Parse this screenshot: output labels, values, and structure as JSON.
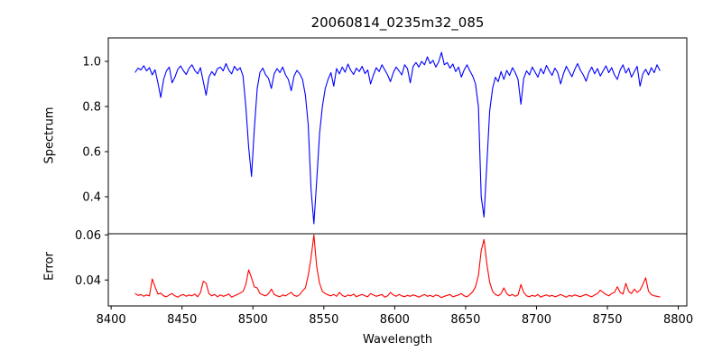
{
  "figure": {
    "title": "20060814_0235m32_085",
    "xlabel": "Wavelength",
    "ylabel_top": "Spectrum",
    "ylabel_bottom": "Error",
    "background_color": "#ffffff",
    "spectrum_color": "#0000ff",
    "error_color": "#ff0000"
  },
  "chart_data": {
    "type": "line",
    "title": "20060814_0235m32_085",
    "xlabel": "Wavelength",
    "xlim": [
      8398,
      8806
    ],
    "xticks": [
      8400,
      8450,
      8500,
      8550,
      8600,
      8650,
      8700,
      8750,
      8800
    ],
    "xtick_labels": [
      "8400",
      "8450",
      "8500",
      "8550",
      "8600",
      "8650",
      "8700",
      "8750",
      "8800"
    ],
    "grid": false,
    "legend": "none",
    "x_start": 8417,
    "x_step": 2,
    "panels": [
      {
        "name": "spectrum",
        "ylabel": "Spectrum",
        "color": "#0000ff",
        "ylim": [
          0.236,
          1.104
        ],
        "yticks": [
          0.4,
          0.6,
          0.8,
          1.0
        ],
        "ytick_labels": [
          "0.4",
          "0.6",
          "0.8",
          "1.0"
        ]
      },
      {
        "name": "error",
        "ylabel": "Error",
        "color": "#ff0000",
        "ylim": [
          0.0285,
          0.0605
        ],
        "yticks": [
          0.04,
          0.06
        ],
        "ytick_labels": [
          "0.04",
          "0.06"
        ]
      }
    ],
    "series": [
      {
        "name": "spectrum",
        "values": [
          0.952,
          0.97,
          0.962,
          0.981,
          0.958,
          0.972,
          0.94,
          0.963,
          0.905,
          0.84,
          0.92,
          0.958,
          0.975,
          0.905,
          0.93,
          0.965,
          0.98,
          0.958,
          0.942,
          0.97,
          0.985,
          0.96,
          0.945,
          0.972,
          0.91,
          0.85,
          0.93,
          0.955,
          0.938,
          0.968,
          0.975,
          0.958,
          0.99,
          0.962,
          0.945,
          0.978,
          0.96,
          0.972,
          0.935,
          0.8,
          0.62,
          0.49,
          0.7,
          0.88,
          0.952,
          0.97,
          0.94,
          0.925,
          0.88,
          0.945,
          0.968,
          0.95,
          0.975,
          0.94,
          0.92,
          0.87,
          0.935,
          0.96,
          0.945,
          0.92,
          0.85,
          0.72,
          0.43,
          0.28,
          0.47,
          0.68,
          0.8,
          0.88,
          0.92,
          0.95,
          0.89,
          0.968,
          0.945,
          0.975,
          0.952,
          0.988,
          0.96,
          0.942,
          0.97,
          0.955,
          0.978,
          0.946,
          0.962,
          0.9,
          0.94,
          0.972,
          0.955,
          0.985,
          0.962,
          0.94,
          0.91,
          0.95,
          0.975,
          0.958,
          0.94,
          0.985,
          0.968,
          0.905,
          0.978,
          0.995,
          0.975,
          1.0,
          0.985,
          1.02,
          0.99,
          1.005,
          0.975,
          0.998,
          1.04,
          0.985,
          0.995,
          0.97,
          0.988,
          0.955,
          0.975,
          0.93,
          0.962,
          0.985,
          0.958,
          0.935,
          0.9,
          0.8,
          0.4,
          0.31,
          0.55,
          0.78,
          0.88,
          0.93,
          0.91,
          0.955,
          0.92,
          0.96,
          0.938,
          0.972,
          0.95,
          0.92,
          0.81,
          0.925,
          0.958,
          0.94,
          0.975,
          0.952,
          0.93,
          0.968,
          0.945,
          0.982,
          0.958,
          0.938,
          0.97,
          0.95,
          0.9,
          0.945,
          0.978,
          0.955,
          0.932,
          0.965,
          0.99,
          0.96,
          0.94,
          0.912,
          0.952,
          0.975,
          0.945,
          0.968,
          0.935,
          0.958,
          0.98,
          0.95,
          0.972,
          0.94,
          0.92,
          0.962,
          0.985,
          0.948,
          0.97,
          0.93,
          0.955,
          0.978,
          0.89,
          0.945,
          0.965,
          0.94,
          0.972,
          0.95,
          0.985,
          0.96
        ]
      },
      {
        "name": "error",
        "values": [
          0.034,
          0.0332,
          0.0336,
          0.0328,
          0.0334,
          0.033,
          0.0405,
          0.037,
          0.0338,
          0.0342,
          0.033,
          0.0326,
          0.0334,
          0.034,
          0.033,
          0.0324,
          0.0332,
          0.0336,
          0.0328,
          0.0334,
          0.033,
          0.0338,
          0.0326,
          0.0344,
          0.0395,
          0.0385,
          0.034,
          0.033,
          0.0336,
          0.0326,
          0.0334,
          0.0328,
          0.0332,
          0.0338,
          0.0324,
          0.033,
          0.0336,
          0.0342,
          0.035,
          0.038,
          0.0445,
          0.041,
          0.037,
          0.0365,
          0.034,
          0.0334,
          0.033,
          0.034,
          0.036,
          0.0336,
          0.033,
          0.0326,
          0.0334,
          0.033,
          0.0338,
          0.0345,
          0.0332,
          0.0328,
          0.0336,
          0.0352,
          0.0365,
          0.042,
          0.05,
          0.06,
          0.046,
          0.0385,
          0.035,
          0.034,
          0.0334,
          0.033,
          0.0336,
          0.0328,
          0.0345,
          0.0332,
          0.0326,
          0.0334,
          0.033,
          0.0338,
          0.0326,
          0.0332,
          0.0336,
          0.033,
          0.0326,
          0.034,
          0.0334,
          0.0328,
          0.0332,
          0.0336,
          0.0324,
          0.033,
          0.0345,
          0.0334,
          0.0328,
          0.0336,
          0.033,
          0.0326,
          0.0332,
          0.0328,
          0.0334,
          0.033,
          0.0324,
          0.033,
          0.0336,
          0.0328,
          0.0332,
          0.0326,
          0.0334,
          0.033,
          0.0322,
          0.0328,
          0.0332,
          0.0336,
          0.0326,
          0.033,
          0.0334,
          0.034,
          0.033,
          0.0326,
          0.0336,
          0.0348,
          0.037,
          0.042,
          0.053,
          0.058,
          0.047,
          0.039,
          0.035,
          0.0336,
          0.033,
          0.034,
          0.0365,
          0.034,
          0.033,
          0.0336,
          0.0328,
          0.0334,
          0.038,
          0.0345,
          0.033,
          0.0326,
          0.0332,
          0.0328,
          0.0336,
          0.0324,
          0.033,
          0.0334,
          0.0328,
          0.0332,
          0.0326,
          0.033,
          0.0336,
          0.033,
          0.0324,
          0.0332,
          0.0328,
          0.0334,
          0.033,
          0.0326,
          0.0332,
          0.0336,
          0.033,
          0.0326,
          0.0334,
          0.034,
          0.0355,
          0.0345,
          0.0336,
          0.033,
          0.034,
          0.0345,
          0.037,
          0.0345,
          0.0338,
          0.0385,
          0.035,
          0.034,
          0.036,
          0.0345,
          0.0355,
          0.038,
          0.041,
          0.035,
          0.0335,
          0.033,
          0.0328,
          0.0325
        ]
      }
    ]
  }
}
